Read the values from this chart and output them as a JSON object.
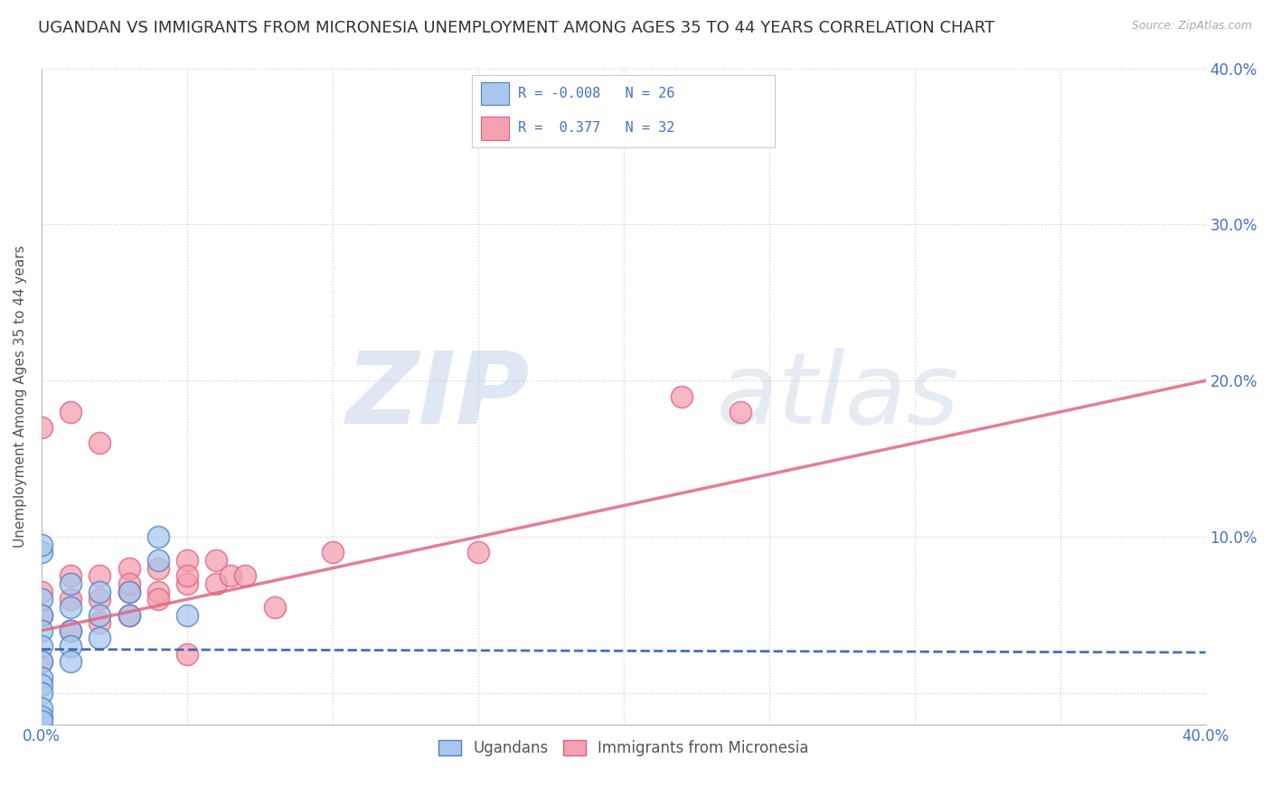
{
  "title": "UGANDAN VS IMMIGRANTS FROM MICRONESIA UNEMPLOYMENT AMONG AGES 35 TO 44 YEARS CORRELATION CHART",
  "source": "Source: ZipAtlas.com",
  "ylabel": "Unemployment Among Ages 35 to 44 years",
  "xlim": [
    0.0,
    0.4
  ],
  "ylim": [
    -0.02,
    0.4
  ],
  "ugandan_x": [
    0.0,
    0.0,
    0.0,
    0.0,
    0.0,
    0.0,
    0.0,
    0.0,
    0.0,
    0.0,
    0.0,
    0.01,
    0.01,
    0.01,
    0.01,
    0.01,
    0.02,
    0.02,
    0.02,
    0.03,
    0.03,
    0.04,
    0.04,
    0.05,
    0.0,
    0.0
  ],
  "ugandan_y": [
    0.06,
    0.05,
    0.04,
    0.03,
    0.02,
    0.01,
    0.005,
    0.0,
    -0.01,
    -0.015,
    -0.018,
    0.07,
    0.055,
    0.04,
    0.03,
    0.02,
    0.065,
    0.05,
    0.035,
    0.065,
    0.05,
    0.1,
    0.085,
    0.05,
    0.09,
    0.095
  ],
  "micronesia_x": [
    0.0,
    0.0,
    0.0,
    0.01,
    0.01,
    0.01,
    0.02,
    0.02,
    0.02,
    0.03,
    0.03,
    0.03,
    0.04,
    0.04,
    0.05,
    0.05,
    0.06,
    0.06,
    0.065,
    0.07,
    0.08,
    0.1,
    0.22,
    0.24,
    0.0,
    0.01,
    0.02,
    0.03,
    0.04,
    0.05,
    0.05,
    0.15
  ],
  "micronesia_y": [
    0.065,
    0.05,
    0.02,
    0.075,
    0.06,
    0.04,
    0.075,
    0.06,
    0.045,
    0.08,
    0.065,
    0.05,
    0.08,
    0.065,
    0.085,
    0.07,
    0.085,
    0.07,
    0.075,
    0.075,
    0.055,
    0.09,
    0.19,
    0.18,
    0.17,
    0.18,
    0.16,
    0.07,
    0.06,
    0.075,
    0.025,
    0.09
  ],
  "ugandan_color": "#a8c8f0",
  "micronesia_color": "#f4a0b0",
  "ugandan_edge": "#5080c0",
  "micronesia_edge": "#e06080",
  "trend_ugandan_color": "#3060b0",
  "trend_micronesia_color": "#e06880",
  "R_ugandan": -0.008,
  "N_ugandan": 26,
  "R_micronesia": 0.377,
  "N_micronesia": 32,
  "watermark_zip": "ZIP",
  "watermark_atlas": "atlas",
  "background_color": "#ffffff",
  "grid_color": "#c8d0dc",
  "title_fontsize": 13,
  "axis_label_fontsize": 11,
  "tick_fontsize": 12,
  "legend_fontsize": 12,
  "trend_ugandan_intercept": 0.028,
  "trend_ugandan_slope": -0.005,
  "trend_micronesia_intercept": 0.04,
  "trend_micronesia_slope": 0.4
}
